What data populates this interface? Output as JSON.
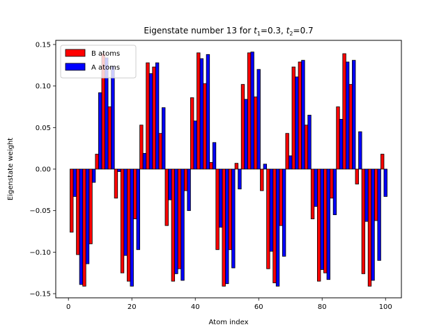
{
  "chart_data": {
    "type": "bar",
    "title": "Eigenstate number 13 for t1=0.3, t2=0.7",
    "title_parts": {
      "prefix": "Eigenstate number 13 for ",
      "t1_sym": "t",
      "t1_sub": "1",
      "t1_val": "=0.3, ",
      "t2_sym": "t",
      "t2_sub": "2",
      "t2_val": "=0.7"
    },
    "xlabel": "Atom index",
    "ylabel": "Eigenstate weight",
    "xlim": [
      -4,
      105
    ],
    "ylim": [
      -0.155,
      0.155
    ],
    "x_ticks": [
      0,
      20,
      40,
      60,
      80,
      100
    ],
    "y_ticks": [
      -0.15,
      -0.1,
      -0.05,
      0.0,
      0.05,
      0.1,
      0.15
    ],
    "y_tick_labels": [
      "−0.15",
      "−0.10",
      "−0.05",
      "0.00",
      "0.05",
      "0.10",
      "0.15"
    ],
    "legend": {
      "placement": "top-left"
    },
    "series": [
      {
        "name": "B atoms",
        "color": "#ff0000",
        "x": [
          1,
          3,
          5,
          7,
          9,
          11,
          13,
          15,
          17,
          19,
          21,
          23,
          25,
          27,
          29,
          31,
          33,
          35,
          37,
          39,
          41,
          43,
          45,
          47,
          49,
          51,
          53,
          55,
          57,
          59,
          61,
          63,
          65,
          67,
          69,
          71,
          73,
          75,
          77,
          79,
          81,
          83,
          85,
          87,
          89,
          91,
          93,
          95,
          97,
          99
        ],
        "values": [
          -0.076,
          -0.103,
          -0.141,
          -0.09,
          0.018,
          0.139,
          0.075,
          -0.035,
          -0.125,
          -0.135,
          -0.06,
          0.053,
          0.128,
          0.123,
          0.043,
          -0.068,
          -0.135,
          -0.12,
          -0.026,
          0.086,
          0.14,
          0.103,
          0.008,
          -0.097,
          -0.141,
          -0.097,
          0.007,
          0.102,
          0.14,
          0.087,
          -0.026,
          -0.12,
          -0.137,
          -0.068,
          0.043,
          0.123,
          0.129,
          0.053,
          -0.06,
          -0.135,
          -0.125,
          -0.035,
          0.075,
          0.139,
          0.102,
          -0.018,
          -0.126,
          -0.141,
          -0.062,
          0.018
        ]
      },
      {
        "name": "A atoms",
        "color": "#0000ff",
        "x": [
          2,
          4,
          6,
          8,
          10,
          12,
          14,
          16,
          18,
          20,
          22,
          24,
          26,
          28,
          30,
          32,
          34,
          36,
          38,
          40,
          42,
          44,
          46,
          48,
          50,
          52,
          54,
          56,
          58,
          60,
          62,
          64,
          66,
          68,
          70,
          72,
          74,
          76,
          78,
          80,
          82,
          84,
          86,
          88,
          90,
          92,
          94,
          96,
          98,
          100
        ],
        "values": [
          -0.033,
          -0.139,
          -0.114,
          -0.016,
          0.092,
          0.134,
          0.124,
          -0.003,
          -0.104,
          -0.141,
          -0.097,
          0.019,
          0.115,
          0.128,
          0.074,
          -0.037,
          -0.126,
          -0.134,
          -0.05,
          0.058,
          0.133,
          0.138,
          0.032,
          -0.07,
          -0.138,
          -0.119,
          -0.024,
          0.084,
          0.141,
          0.12,
          0.006,
          -0.099,
          -0.141,
          -0.105,
          0.016,
          0.111,
          0.131,
          0.065,
          -0.045,
          -0.121,
          -0.133,
          -0.055,
          0.06,
          0.129,
          0.131,
          0.045,
          -0.063,
          -0.134,
          -0.11,
          -0.033
        ]
      }
    ]
  }
}
